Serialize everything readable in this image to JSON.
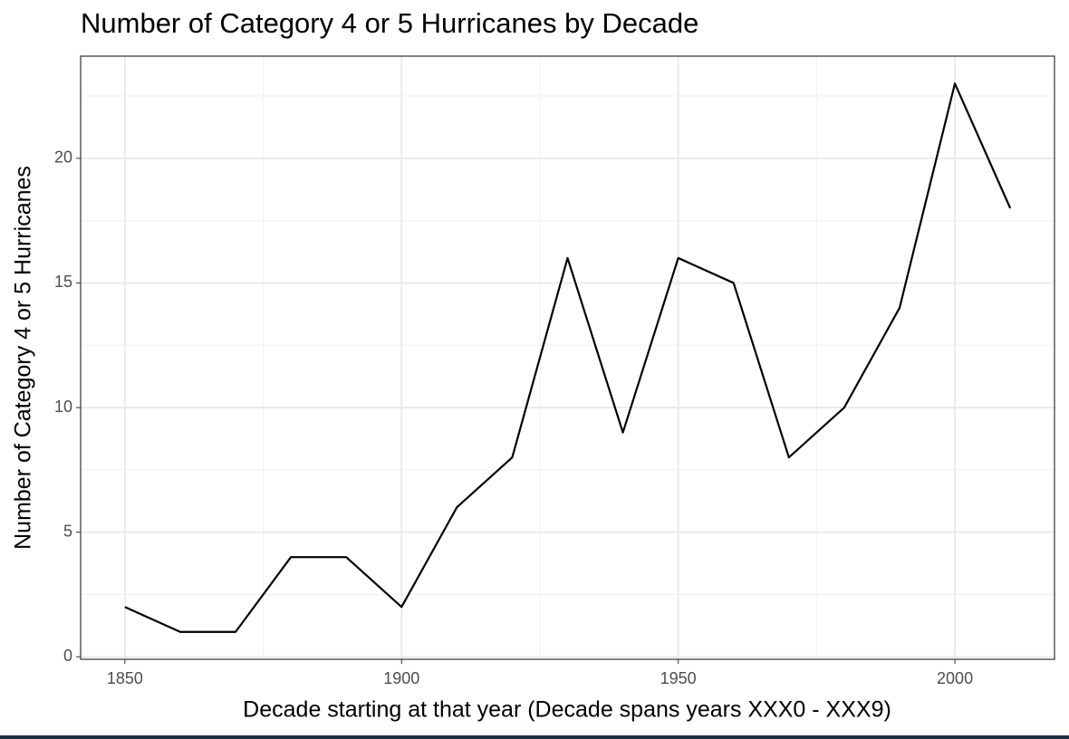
{
  "chart_data": {
    "type": "line",
    "title": "Number of Category 4 or 5 Hurricanes by Decade",
    "x_label": "Decade starting at that year (Decade spans years XXX0 - XXX9)",
    "y_label": "Number of Category 4 or 5 Hurricanes",
    "x": [
      1850,
      1860,
      1870,
      1880,
      1890,
      1900,
      1910,
      1920,
      1930,
      1940,
      1950,
      1960,
      1970,
      1980,
      1990,
      2000,
      2010
    ],
    "values": [
      2,
      1,
      1,
      4,
      4,
      2,
      6,
      8,
      16,
      9,
      16,
      15,
      8,
      10,
      14,
      23,
      18
    ],
    "color": "#000000",
    "xlim": [
      1842,
      2018
    ],
    "xticks": [
      1850,
      1900,
      1950,
      2000
    ],
    "ylim": [
      -0.1,
      24.1
    ],
    "yticks": [
      0,
      5,
      10,
      15,
      20
    ],
    "grid": true,
    "minor_grid": true
  }
}
